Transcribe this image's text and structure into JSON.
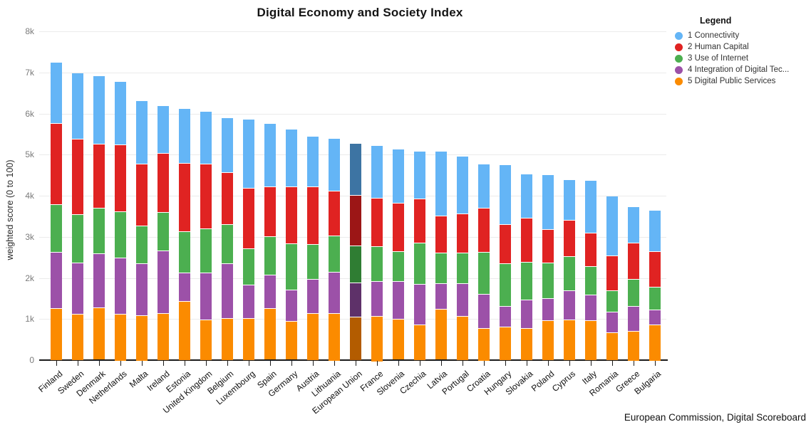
{
  "title": "Digital Economy and Society Index",
  "y_axis": {
    "label": "weighted score (0 to 100)",
    "tick_labels": [
      "0",
      "1k",
      "2k",
      "3k",
      "4k",
      "5k",
      "6k",
      "7k",
      "8k"
    ]
  },
  "legend": {
    "title": "Legend",
    "items": [
      {
        "label": "1 Connectivity",
        "color": "#64b5f6"
      },
      {
        "label": "2 Human Capital",
        "color": "#e02322"
      },
      {
        "label": "3 Use of Internet",
        "color": "#4caf50"
      },
      {
        "label": "4 Integration of Digital Tec...",
        "color": "#9c51a8"
      },
      {
        "label": "5 Digital Public Services",
        "color": "#fb8b00"
      }
    ]
  },
  "source": "European Commission, Digital Scoreboard",
  "chart_data": {
    "type": "bar",
    "stacked": true,
    "title": "Digital Economy and Society Index",
    "xlabel": "",
    "ylabel": "weighted score (0 to 100)",
    "ylim": [
      0,
      8000
    ],
    "grid": true,
    "legend_position": "top-right",
    "note": "values are weighted dimension scores in axis units (1k = 1000); stack order bottom-to-top is series 5,4,3,2,1",
    "categories": [
      "Finland",
      "Sweden",
      "Denmark",
      "Netherlands",
      "Malta",
      "Ireland",
      "Estonia",
      "United Kingdom",
      "Belgium",
      "Luxembourg",
      "Spain",
      "Germany",
      "Austria",
      "Lithuania",
      "European Union",
      "France",
      "Slovenia",
      "Czechia",
      "Latvia",
      "Portugal",
      "Croatia",
      "Hungary",
      "Slovakia",
      "Poland",
      "Cyprus",
      "Italy",
      "Romania",
      "Greece",
      "Bulgaria"
    ],
    "series": [
      {
        "name": "1 Connectivity",
        "color": "#64b5f6",
        "values": [
          1480,
          1590,
          1650,
          1520,
          1530,
          1150,
          1310,
          1260,
          1320,
          1670,
          1530,
          1380,
          1210,
          1260,
          1250,
          1260,
          1300,
          1150,
          1560,
          1380,
          1050,
          1440,
          1050,
          1310,
          970,
          1260,
          1440,
          860,
          990
        ]
      },
      {
        "name": "2 Human Capital",
        "color": "#e02322",
        "values": [
          1970,
          1830,
          1560,
          1630,
          1500,
          1430,
          1660,
          1580,
          1260,
          1470,
          1210,
          1390,
          1400,
          1090,
          1230,
          1170,
          1180,
          1070,
          900,
          960,
          1070,
          950,
          1080,
          820,
          890,
          810,
          840,
          880,
          860
        ]
      },
      {
        "name": "3 Use of Internet",
        "color": "#4caf50",
        "values": [
          1160,
          1180,
          1110,
          1120,
          910,
          930,
          1010,
          1070,
          950,
          880,
          940,
          1130,
          850,
          880,
          900,
          850,
          730,
          1000,
          750,
          740,
          1020,
          1040,
          920,
          860,
          830,
          690,
          520,
          660,
          550
        ]
      },
      {
        "name": "4 Integration of Digital Tec...",
        "color": "#9c51a8",
        "values": [
          1360,
          1240,
          1320,
          1360,
          1260,
          1520,
          690,
          1140,
          1340,
          810,
          820,
          770,
          830,
          1000,
          830,
          840,
          920,
          990,
          630,
          800,
          830,
          510,
          690,
          540,
          710,
          630,
          510,
          610,
          360
        ]
      },
      {
        "name": "5 Digital Public Services",
        "color": "#fb8b00",
        "values": [
          1260,
          1130,
          1270,
          1140,
          1110,
          1150,
          1440,
          990,
          1020,
          1030,
          1250,
          940,
          1140,
          1160,
          1050,
          1100,
          990,
          870,
          1230,
          1080,
          790,
          810,
          780,
          970,
          980,
          970,
          680,
          720,
          880
        ]
      }
    ],
    "totals": [
      7230,
      6970,
      6910,
      6770,
      6310,
      6180,
      6110,
      6040,
      5890,
      5860,
      5750,
      5610,
      5430,
      5390,
      5260,
      5220,
      5120,
      5080,
      5070,
      4960,
      4760,
      4750,
      4520,
      4500,
      4380,
      4360,
      3990,
      3730,
      3640
    ],
    "highlight": {
      "category": "European Union",
      "colors": [
        "#3d74a3",
        "#9c1616",
        "#2f7d33",
        "#5e3169",
        "#b35c00"
      ]
    }
  }
}
